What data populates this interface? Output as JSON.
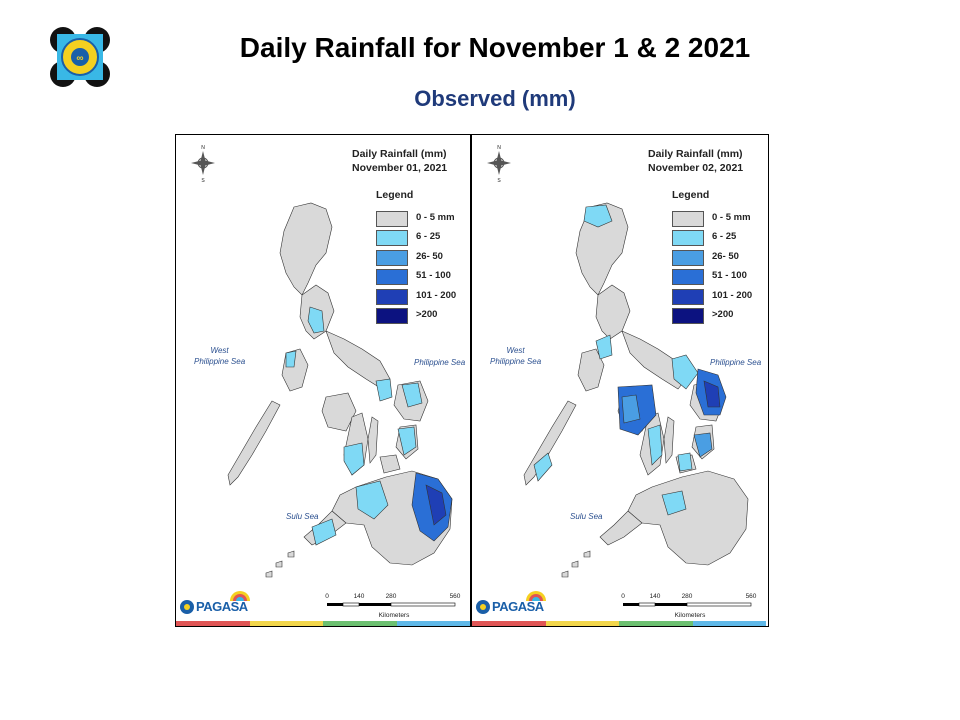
{
  "header": {
    "title": "Daily Rainfall for November 1 & 2  2021",
    "subtitle": "Observed (mm)"
  },
  "legend": {
    "title": "Legend",
    "classes": [
      {
        "label": "0 - 5 mm",
        "color": "#d9d9d9"
      },
      {
        "label": "6 - 25",
        "color": "#7fd9f5"
      },
      {
        "label": "26- 50",
        "color": "#4a9ee3"
      },
      {
        "label": "51 - 100",
        "color": "#2a6fd6"
      },
      {
        "label": "101 - 200",
        "color": "#1f3fb5"
      },
      {
        "label": ">200",
        "color": "#0c1280"
      }
    ]
  },
  "maps": [
    {
      "title_line1": "Daily Rainfall (mm)",
      "title_line2": "November 01, 2021",
      "seas": {
        "west": "West\nPhilippine Sea",
        "east": "Philippine Sea",
        "south": "Sulu Sea"
      }
    },
    {
      "title_line1": "Daily Rainfall (mm)",
      "title_line2": "November 02, 2021",
      "seas": {
        "west": "West\nPhilippine Sea",
        "east": "Philippine Sea",
        "south": "Sulu Sea"
      }
    }
  ],
  "scale": {
    "ticks": [
      "0",
      "140",
      "280",
      "560"
    ],
    "unit": "Kilometers"
  },
  "compass": {
    "north": "N",
    "south": "S"
  },
  "branding": {
    "name": "PAGASA",
    "icon": "pagasa-logo-icon",
    "agency_logo": "dost-seal-icon"
  },
  "colors": {
    "title": "#000000",
    "subtitle": "#1f3a7a",
    "sea_label": "#2a4f8f",
    "strip": [
      "#e05555",
      "#f2d64b",
      "#6cc070",
      "#5fb8e8"
    ]
  }
}
